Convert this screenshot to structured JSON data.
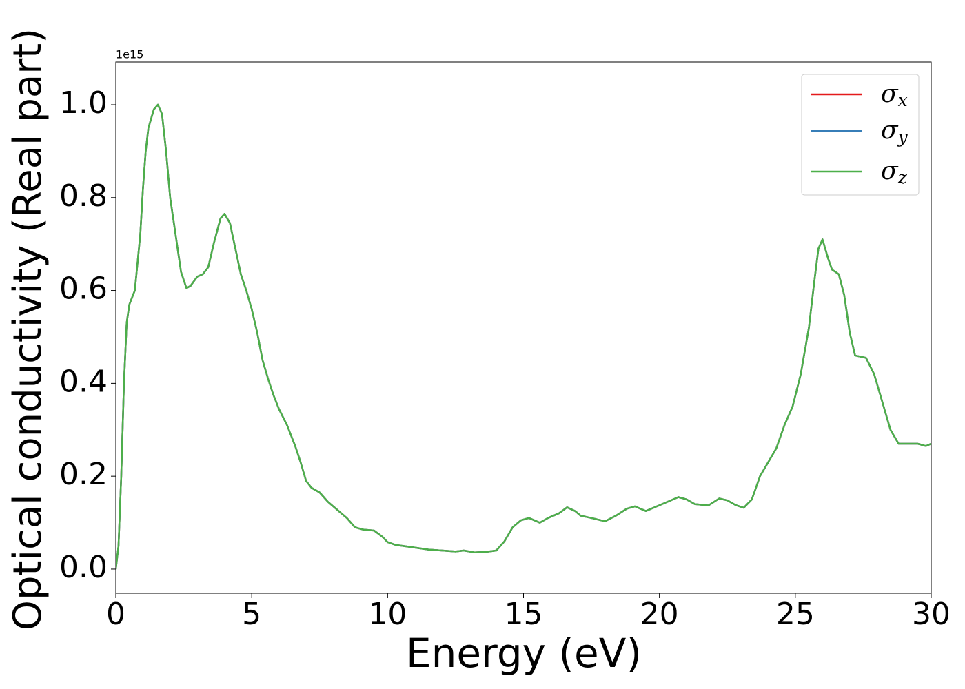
{
  "chart_data": {
    "type": "line",
    "xlabel": "Energy (eV)",
    "ylabel": "Optical conductivity (Real part)",
    "offset_label": "1e15",
    "x": [
      0,
      0.1,
      0.2,
      0.3,
      0.4,
      0.5,
      0.7,
      0.9,
      1.0,
      1.1,
      1.2,
      1.4,
      1.55,
      1.7,
      1.85,
      2.0,
      2.2,
      2.4,
      2.6,
      2.75,
      3.0,
      3.2,
      3.4,
      3.6,
      3.85,
      4.0,
      4.2,
      4.4,
      4.6,
      4.8,
      5.0,
      5.2,
      5.4,
      5.6,
      5.8,
      6.0,
      6.3,
      6.6,
      6.8,
      7.0,
      7.2,
      7.5,
      7.8,
      8.1,
      8.5,
      8.8,
      9.1,
      9.5,
      9.8,
      10.0,
      10.3,
      10.8,
      11.5,
      12.0,
      12.5,
      12.8,
      13.2,
      13.6,
      14.0,
      14.3,
      14.6,
      14.9,
      15.2,
      15.6,
      15.9,
      16.3,
      16.6,
      16.9,
      17.1,
      17.5,
      18.0,
      18.4,
      18.8,
      19.1,
      19.5,
      19.9,
      20.3,
      20.7,
      21.0,
      21.3,
      21.8,
      22.2,
      22.5,
      22.8,
      23.1,
      23.4,
      23.7,
      24.0,
      24.3,
      24.6,
      24.9,
      25.2,
      25.5,
      25.7,
      25.85,
      26.0,
      26.2,
      26.35,
      26.6,
      26.8,
      27.0,
      27.2,
      27.6,
      27.9,
      28.2,
      28.5,
      28.8,
      29.2,
      29.5,
      29.8,
      30.0
    ],
    "series": [
      {
        "name": "σx",
        "color": "#e41a1c",
        "values": [
          0,
          0.05,
          0.2,
          0.4,
          0.53,
          0.57,
          0.6,
          0.72,
          0.82,
          0.9,
          0.95,
          0.99,
          1.0,
          0.98,
          0.9,
          0.8,
          0.72,
          0.64,
          0.605,
          0.61,
          0.63,
          0.635,
          0.65,
          0.7,
          0.755,
          0.765,
          0.745,
          0.69,
          0.635,
          0.6,
          0.56,
          0.51,
          0.45,
          0.41,
          0.375,
          0.345,
          0.31,
          0.265,
          0.23,
          0.19,
          0.175,
          0.165,
          0.145,
          0.13,
          0.11,
          0.09,
          0.085,
          0.083,
          0.07,
          0.058,
          0.052,
          0.048,
          0.042,
          0.04,
          0.038,
          0.04,
          0.036,
          0.037,
          0.04,
          0.06,
          0.09,
          0.105,
          0.11,
          0.1,
          0.11,
          0.12,
          0.133,
          0.125,
          0.115,
          0.11,
          0.103,
          0.115,
          0.13,
          0.135,
          0.125,
          0.135,
          0.145,
          0.155,
          0.15,
          0.14,
          0.137,
          0.152,
          0.148,
          0.138,
          0.132,
          0.15,
          0.2,
          0.23,
          0.26,
          0.31,
          0.35,
          0.42,
          0.52,
          0.62,
          0.69,
          0.71,
          0.67,
          0.645,
          0.635,
          0.59,
          0.51,
          0.46,
          0.455,
          0.42,
          0.36,
          0.3,
          0.27,
          0.27,
          0.27,
          0.265,
          0.27
        ]
      },
      {
        "name": "σy",
        "color": "#377eb8",
        "values": [
          0,
          0.05,
          0.2,
          0.4,
          0.53,
          0.57,
          0.6,
          0.72,
          0.82,
          0.9,
          0.95,
          0.99,
          1.0,
          0.98,
          0.9,
          0.8,
          0.72,
          0.64,
          0.605,
          0.61,
          0.63,
          0.635,
          0.65,
          0.7,
          0.755,
          0.765,
          0.745,
          0.69,
          0.635,
          0.6,
          0.56,
          0.51,
          0.45,
          0.41,
          0.375,
          0.345,
          0.31,
          0.265,
          0.23,
          0.19,
          0.175,
          0.165,
          0.145,
          0.13,
          0.11,
          0.09,
          0.085,
          0.083,
          0.07,
          0.058,
          0.052,
          0.048,
          0.042,
          0.04,
          0.038,
          0.04,
          0.036,
          0.037,
          0.04,
          0.06,
          0.09,
          0.105,
          0.11,
          0.1,
          0.11,
          0.12,
          0.133,
          0.125,
          0.115,
          0.11,
          0.103,
          0.115,
          0.13,
          0.135,
          0.125,
          0.135,
          0.145,
          0.155,
          0.15,
          0.14,
          0.137,
          0.152,
          0.148,
          0.138,
          0.132,
          0.15,
          0.2,
          0.23,
          0.26,
          0.31,
          0.35,
          0.42,
          0.52,
          0.62,
          0.69,
          0.71,
          0.67,
          0.645,
          0.635,
          0.59,
          0.51,
          0.46,
          0.455,
          0.42,
          0.36,
          0.3,
          0.27,
          0.27,
          0.27,
          0.265,
          0.27
        ]
      },
      {
        "name": "σz",
        "color": "#4daf4a",
        "values": [
          0,
          0.05,
          0.2,
          0.4,
          0.53,
          0.57,
          0.6,
          0.72,
          0.82,
          0.9,
          0.95,
          0.99,
          1.0,
          0.98,
          0.9,
          0.8,
          0.72,
          0.64,
          0.605,
          0.61,
          0.63,
          0.635,
          0.65,
          0.7,
          0.755,
          0.765,
          0.745,
          0.69,
          0.635,
          0.6,
          0.56,
          0.51,
          0.45,
          0.41,
          0.375,
          0.345,
          0.31,
          0.265,
          0.23,
          0.19,
          0.175,
          0.165,
          0.145,
          0.13,
          0.11,
          0.09,
          0.085,
          0.083,
          0.07,
          0.058,
          0.052,
          0.048,
          0.042,
          0.04,
          0.038,
          0.04,
          0.036,
          0.037,
          0.04,
          0.06,
          0.09,
          0.105,
          0.11,
          0.1,
          0.11,
          0.12,
          0.133,
          0.125,
          0.115,
          0.11,
          0.103,
          0.115,
          0.13,
          0.135,
          0.125,
          0.135,
          0.145,
          0.155,
          0.15,
          0.14,
          0.137,
          0.152,
          0.148,
          0.138,
          0.132,
          0.15,
          0.2,
          0.23,
          0.26,
          0.31,
          0.35,
          0.42,
          0.52,
          0.62,
          0.69,
          0.71,
          0.67,
          0.645,
          0.635,
          0.59,
          0.51,
          0.46,
          0.455,
          0.42,
          0.36,
          0.3,
          0.27,
          0.27,
          0.27,
          0.265,
          0.27
        ]
      }
    ],
    "xlim": [
      0,
      30
    ],
    "xticks": [
      0,
      5,
      10,
      15,
      20,
      25,
      30
    ],
    "ylim": [
      -0.052,
      1.092
    ],
    "yticks": [
      {
        "value": 0,
        "label": "0.0"
      },
      0.2,
      0.4,
      0.6,
      0.8,
      {
        "value": 1,
        "label": "1.0"
      }
    ],
    "grid": false,
    "legend": "upper right"
  }
}
